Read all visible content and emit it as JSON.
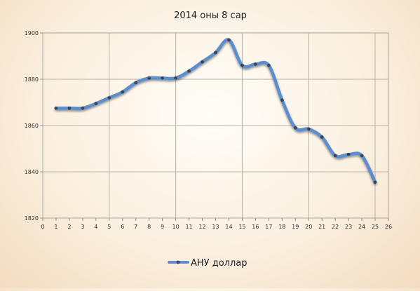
{
  "chart_data": {
    "type": "line",
    "title": "2014 оны 8 сар",
    "xlabel": "",
    "ylabel": "",
    "xlim": [
      0,
      26
    ],
    "ylim": [
      1820,
      1900
    ],
    "x_ticks": [
      0,
      1,
      2,
      3,
      4,
      5,
      6,
      7,
      8,
      9,
      10,
      11,
      12,
      13,
      14,
      15,
      16,
      17,
      18,
      19,
      20,
      21,
      22,
      23,
      24,
      25,
      26
    ],
    "y_ticks": [
      1820,
      1840,
      1860,
      1880,
      1900
    ],
    "x_grid_step": 5,
    "grid": true,
    "legend_position": "bottom-center",
    "series": [
      {
        "name": "АНУ доллар",
        "color": "#5b8ecf",
        "marker_color": "#3a4658",
        "x": [
          1,
          2,
          3,
          4,
          5,
          6,
          7,
          8,
          9,
          10,
          11,
          12,
          13,
          14,
          15,
          16,
          17,
          18,
          19,
          20,
          21,
          22,
          23,
          24,
          25
        ],
        "values": [
          1867.5,
          1867.5,
          1867.5,
          1869.5,
          1872,
          1874.5,
          1878.5,
          1880.5,
          1880.5,
          1880.5,
          1883.5,
          1887.5,
          1891.5,
          1897,
          1886,
          1886.5,
          1886,
          1871,
          1859,
          1858.5,
          1855,
          1847,
          1847.5,
          1847,
          1835.5
        ]
      }
    ]
  }
}
